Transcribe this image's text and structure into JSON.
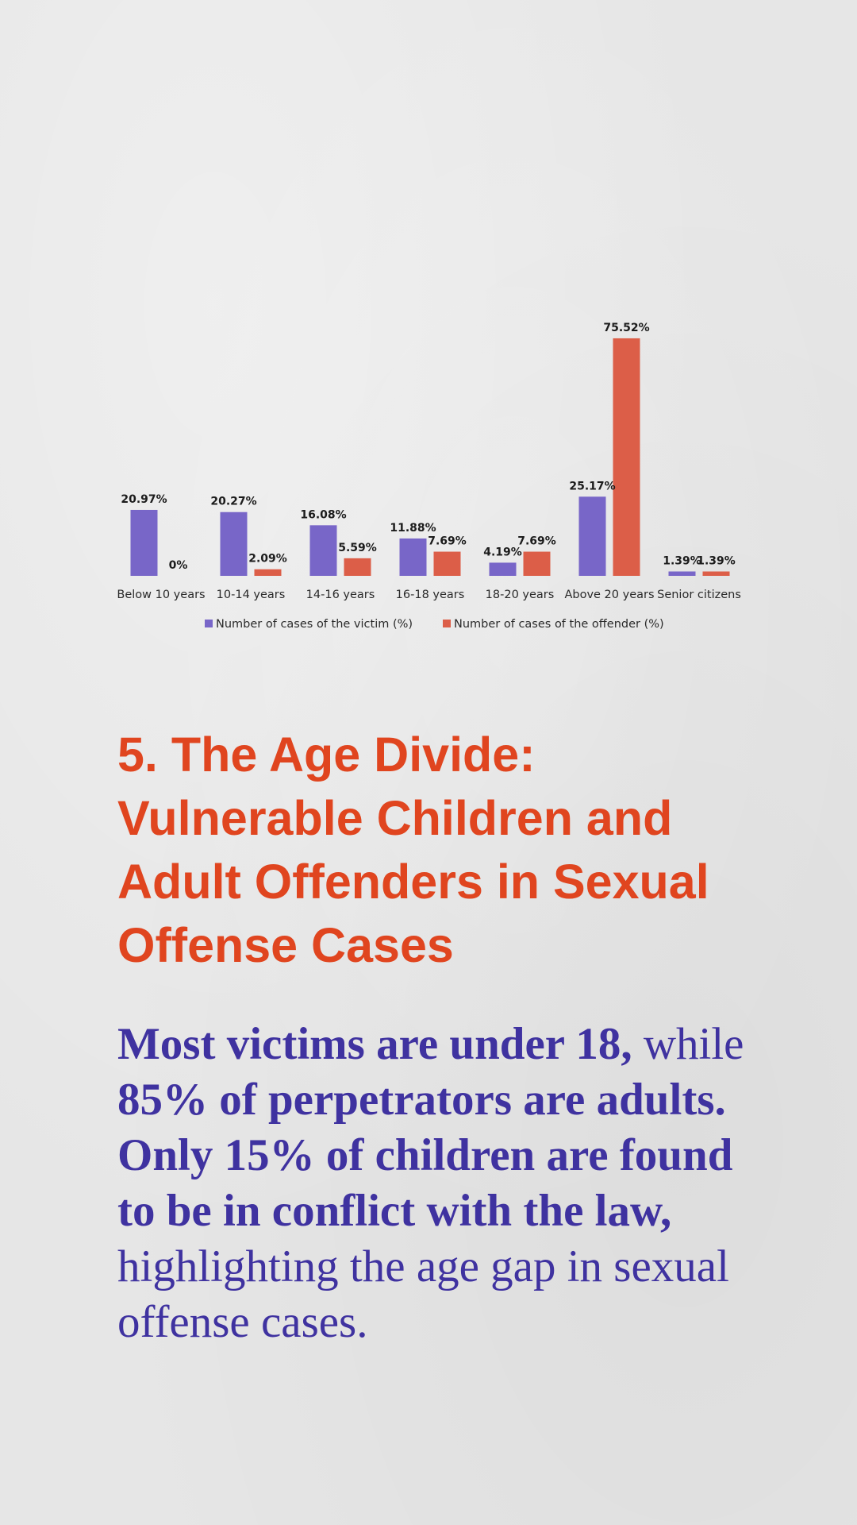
{
  "chart_data": {
    "type": "bar",
    "categories": [
      "Below 10 years",
      "10-14 years",
      "14-16 years",
      "16-18 years",
      "18-20 years",
      "Above 20 years",
      "Senior citizens"
    ],
    "series": [
      {
        "name": "Number of cases of the victim (%)",
        "values": [
          20.97,
          20.27,
          16.08,
          11.88,
          4.19,
          25.17,
          1.39
        ],
        "labels": [
          "20.97%",
          "20.27%",
          "16.08%",
          "11.88%",
          "4.19%",
          "25.17%",
          "1.39%"
        ],
        "color": "#7866c8"
      },
      {
        "name": "Number of cases of the offender (%)",
        "values": [
          0,
          2.09,
          5.59,
          7.69,
          7.69,
          75.52,
          1.39
        ],
        "labels": [
          "0%",
          "2.09%",
          "5.59%",
          "7.69%",
          "7.69%",
          "75.52%",
          "1.39%"
        ],
        "color": "#dc5e48"
      }
    ],
    "ylim": [
      0,
      80
    ],
    "grid": false,
    "legend": "bottom-center"
  },
  "article": {
    "headline": "5. The Age Divide: Vulnerable Children and Adult Offenders in Sexual Offense Cases",
    "body_segments": [
      {
        "text": "Most victims are under 18,",
        "bold": true
      },
      {
        "text": " while ",
        "bold": false
      },
      {
        "text": "85% of perpetrators are adults. Only 15% of children are found to be in conflict with the law,",
        "bold": true
      },
      {
        "text": " highlighting the age gap in sexual offense cases.",
        "bold": false
      }
    ]
  },
  "colors": {
    "headline": "#e0451f",
    "body": "#3f32a0",
    "background": "#e6e6e6"
  }
}
